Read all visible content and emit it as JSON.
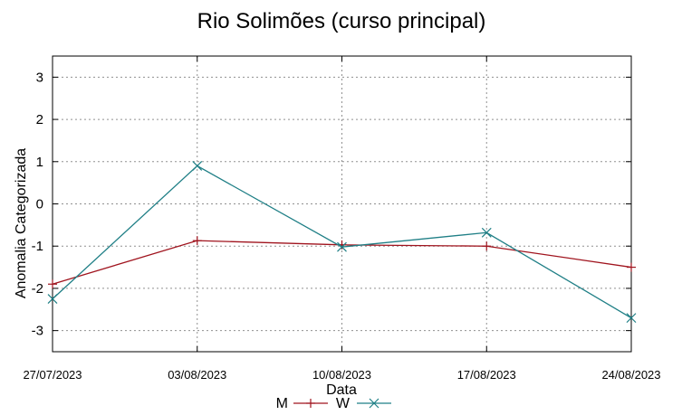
{
  "chart_data": {
    "type": "line",
    "title": "Rio Solimões (curso principal)",
    "xlabel": "Data",
    "ylabel": "Anomalia Categorizada",
    "x": [
      "27/07/2023",
      "03/08/2023",
      "10/08/2023",
      "17/08/2023",
      "24/08/2023"
    ],
    "ylim": [
      -3.5,
      3.5
    ],
    "yticks": [
      3,
      2,
      1,
      0,
      -1,
      -2,
      -3
    ],
    "grid": true,
    "legend_position": "bottom-center",
    "series": [
      {
        "name": "M",
        "color": "#a0141e",
        "marker": "plus",
        "values": [
          -1.9,
          -0.87,
          -0.97,
          -1.0,
          -1.5
        ]
      },
      {
        "name": "W",
        "color": "#1f7f86",
        "marker": "cross",
        "values": [
          -2.25,
          0.9,
          -1.02,
          -0.68,
          -2.7
        ]
      }
    ]
  }
}
